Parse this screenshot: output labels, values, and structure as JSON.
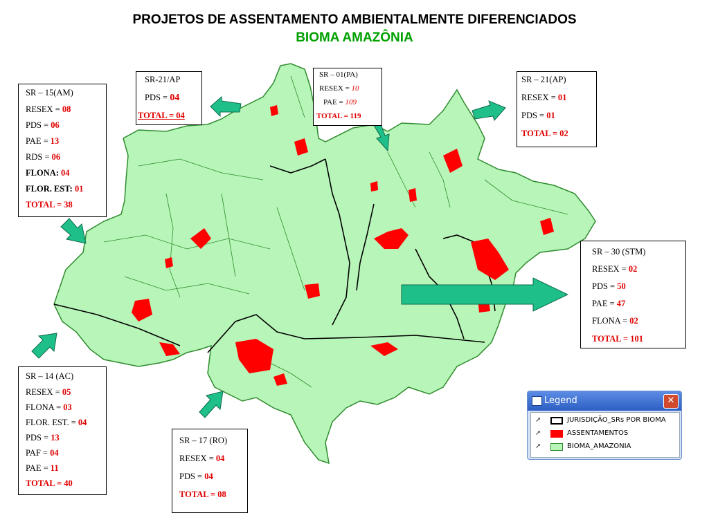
{
  "title": "PROJETOS DE ASSENTAMENTO AMBIENTALMENTE DIFERENCIADOS",
  "subtitle": "BIOMA AMAZÔNIA",
  "boxes": {
    "sr15": {
      "header": "SR – 15(AM)",
      "rows": [
        {
          "label": "RESEX = ",
          "value": "08"
        },
        {
          "label": "PDS = ",
          "value": "06"
        },
        {
          "label": "PAE = ",
          "value": "13"
        },
        {
          "label": "RDS = ",
          "value": "06"
        },
        {
          "label": "FLONA: ",
          "value": "04"
        },
        {
          "label": "FLOR. EST: ",
          "value": "01"
        }
      ],
      "total": "TOTAL = 38"
    },
    "sr21a": {
      "header": "SR-21/AP",
      "rows": [
        {
          "label": "PDS = ",
          "value": "04"
        }
      ],
      "total": "TOTAL = 04"
    },
    "sr01": {
      "header": "SR – 01(PA)",
      "rows": [
        {
          "label": "RESEX = ",
          "value": "10"
        },
        {
          "label": "PAE = ",
          "value": "109"
        }
      ],
      "total": "TOTAL = 119"
    },
    "sr21b": {
      "header": "SR – 21(AP)",
      "rows": [
        {
          "label": "RESEX = ",
          "value": "01"
        },
        {
          "label": "PDS = ",
          "value": "01"
        }
      ],
      "total": "TOTAL = 02"
    },
    "sr30": {
      "header": "SR – 30 (STM)",
      "rows": [
        {
          "label": "RESEX = ",
          "value": "02"
        },
        {
          "label": "PDS = ",
          "value": "50"
        },
        {
          "label": "PAE = ",
          "value": "47"
        },
        {
          "label": "FLONA = ",
          "value": "02"
        }
      ],
      "total": "TOTAL = 101"
    },
    "sr14": {
      "header": "SR – 14  (AC)",
      "rows": [
        {
          "label": "RESEX = ",
          "value": "05"
        },
        {
          "label": "FLONA = ",
          "value": "03"
        },
        {
          "label": "FLOR. EST. = ",
          "value": "04"
        },
        {
          "label": "PDS = ",
          "value": "13"
        },
        {
          "label": "PAF = ",
          "value": "04"
        },
        {
          "label": "PAE = ",
          "value": "11"
        }
      ],
      "total": "TOTAL = 40"
    },
    "sr17": {
      "header": "SR – 17 (RO)",
      "rows": [
        {
          "label": "RESEX = ",
          "value": "04"
        },
        {
          "label": "PDS = ",
          "value": "04"
        }
      ],
      "total": "TOTAL = 08"
    }
  },
  "legend": {
    "title": "Legend",
    "close": "✕",
    "items": [
      {
        "label": "JURISDIÇÃO_SRs POR BIOMA",
        "icon": "outline-swatch"
      },
      {
        "label": "ASSENTAMENTOS",
        "icon": "red-swatch"
      },
      {
        "label": "BIOMA_AMAZONIA",
        "icon": "green-swatch"
      }
    ]
  },
  "colors": {
    "biome": "#b8f5b8",
    "borders": "#2e8b2e",
    "settlements": "#ff0000",
    "arrows": "#1fbf8a",
    "accent_red": "#e00000",
    "subtitle_green": "#00a000"
  }
}
